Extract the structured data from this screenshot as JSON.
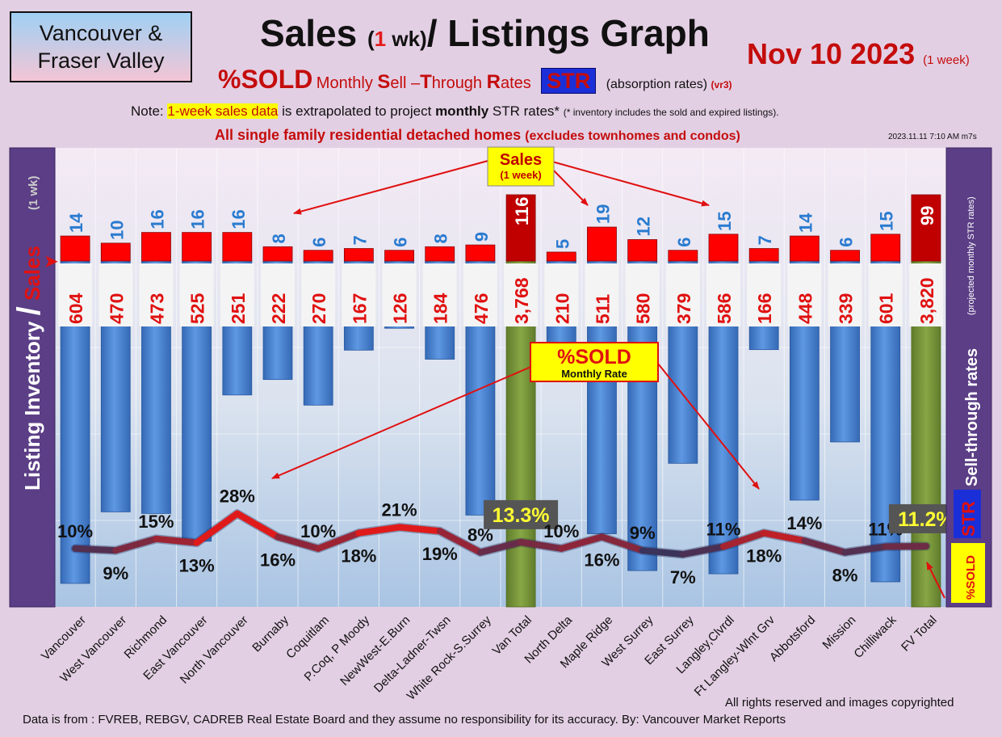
{
  "header": {
    "region_line1": "Vancouver &",
    "region_line2": "Fraser Valley",
    "title_part1": "Sales ",
    "title_paren_open": "(",
    "title_one": "1",
    "title_wk": " wk)",
    "title_part2": "/ Listings Graph",
    "date": "Nov 10  2023",
    "date_note": "(1 week)",
    "subtitle_sold": "%SOLD",
    "subtitle_m": "Monthly ",
    "subtitle_S": "S",
    "subtitle_ell": "ell –",
    "subtitle_T": "T",
    "subtitle_hrough": "hrough ",
    "subtitle_R": "R",
    "subtitle_ates": "ates",
    "subtitle_badge": "STR",
    "subtitle_absorb": "(absorption rates)",
    "subtitle_version": "(vr3)",
    "note_prefix": "Note: ",
    "note_highlight": "1-week sales data",
    "note_middle": " is extrapolated to project ",
    "note_monthly": "monthly",
    "note_suffix": " STR rates* ",
    "note_small": "(* inventory includes the sold and expired listings).",
    "scope_main": "All single family residential detached homes ",
    "scope_small": "(excludes townhomes and condos)",
    "timestamp": "2023.11.11 7:10 AM m7s"
  },
  "footer": {
    "rights": "All rights reserved and  images copyrighted",
    "source": "Data is from : FVREB, REBGV, CADREB Real Estate Board and they assume no responsibility for its accuracy. By: Vancouver Market Reports"
  },
  "chart_data": {
    "type": "bar",
    "categories": [
      "Vancouver",
      "West Vancouver",
      "Richmond",
      "East Vancouver",
      "North Vancouver",
      "Burnaby",
      "Coquitlam",
      "P.Coq, P Moody",
      "NewWest-E.Burn",
      "Delta-Ladner-Twsn",
      "White Rock-S.Surrey",
      "Van Total",
      "North Delta",
      "Maple Ridge",
      "West Surrey",
      "East Surrey",
      "Langley,Clvrdl",
      "Ft Langley-Wlnt Grv",
      "Abbotsford",
      "Mission",
      "Chilliwack",
      "FV Total"
    ],
    "totals": [
      "Van Total",
      "FV Total"
    ],
    "series": [
      {
        "name": "Sales",
        "values": [
          14,
          10,
          16,
          16,
          16,
          8,
          6,
          7,
          6,
          8,
          9,
          116,
          5,
          19,
          12,
          6,
          15,
          7,
          14,
          6,
          15,
          99
        ]
      },
      {
        "name": "Listing Inventory",
        "values": [
          604,
          470,
          473,
          525,
          251,
          222,
          270,
          167,
          126,
          184,
          476,
          3768,
          210,
          511,
          580,
          379,
          586,
          166,
          448,
          339,
          601,
          3820
        ]
      },
      {
        "name": "%SOLD",
        "values": [
          10,
          9,
          15,
          13,
          28,
          16,
          10,
          18,
          21,
          19,
          8,
          13.3,
          10,
          16,
          9,
          7,
          11,
          18,
          14,
          8,
          11,
          11.2
        ]
      }
    ],
    "labels": {
      "sales": [
        "14",
        "10",
        "16",
        "16",
        "16",
        "8",
        "6",
        "7",
        "6",
        "8",
        "9",
        "116",
        "5",
        "19",
        "12",
        "6",
        "15",
        "7",
        "14",
        "6",
        "15",
        "99"
      ],
      "inventory": [
        "604",
        "470",
        "473",
        "525",
        "251",
        "222",
        "270",
        "167",
        "126",
        "184",
        "476",
        "3,768",
        "210",
        "511",
        "580",
        "379",
        "586",
        "166",
        "448",
        "339",
        "601",
        "3,820"
      ],
      "pct": [
        "10%",
        "9%",
        "15%",
        "13%",
        "28%",
        "16%",
        "10%",
        "18%",
        "21%",
        "19%",
        "8%",
        "13.3%",
        "10%",
        "16%",
        "9%",
        "7%",
        "11%",
        "18%",
        "14%",
        "8%",
        "11%",
        "11.2%"
      ]
    },
    "left_axis_label_a": "Listing Inventory ",
    "left_axis_label_slash": "/",
    "left_axis_label_b": " Sales",
    "left_axis_label_c": "(1 wk)",
    "right_axis_label_a": "%SOLD",
    "right_axis_label_badge": "STR",
    "right_axis_label_b": " Sell-through rates ",
    "right_axis_label_c": "(projected monthly STR rates)",
    "callout_sales_title": "Sales",
    "callout_sales_sub": "(1 week)",
    "callout_sold_title": "%SOLD",
    "callout_sold_sub": "Monthly Rate",
    "colors": {
      "sales_bar": "#ff0000",
      "sales_total_bar": "#c00000",
      "inventory_bar": "#4a86d6",
      "total_bar": "#7a9a3a",
      "line_high": "#e01a1a",
      "line_low": "#2a3560",
      "sales_label": "#2a7bd0",
      "inventory_label": "#e01010",
      "pct_label": "#111111",
      "total_pct_label": "#ffff33"
    }
  }
}
